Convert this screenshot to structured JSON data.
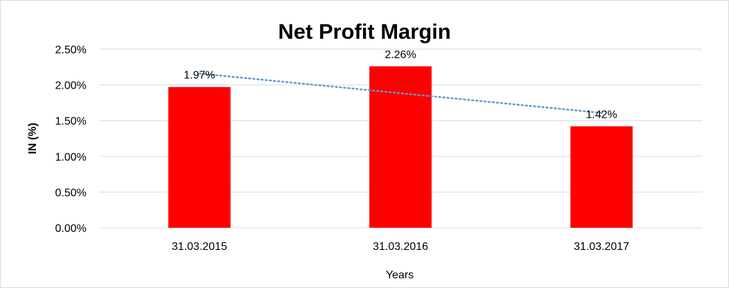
{
  "chart_data": {
    "type": "bar",
    "title": "Net Profit Margin",
    "xlabel": "Years",
    "ylabel": "IN (%)",
    "categories": [
      "31.03.2015",
      "31.03.2016",
      "31.03.2017"
    ],
    "values": [
      1.97,
      2.26,
      1.42
    ],
    "data_labels": [
      "1.97%",
      "2.26%",
      "1.42%"
    ],
    "ylim": [
      0,
      2.5
    ],
    "yticks": [
      "0.00%",
      "0.50%",
      "1.00%",
      "1.50%",
      "2.00%",
      "2.50%"
    ],
    "grid": true,
    "bar_color": "#ff0000",
    "trendline": {
      "type": "linear",
      "style": "dotted",
      "color": "#5b9bd5"
    }
  }
}
